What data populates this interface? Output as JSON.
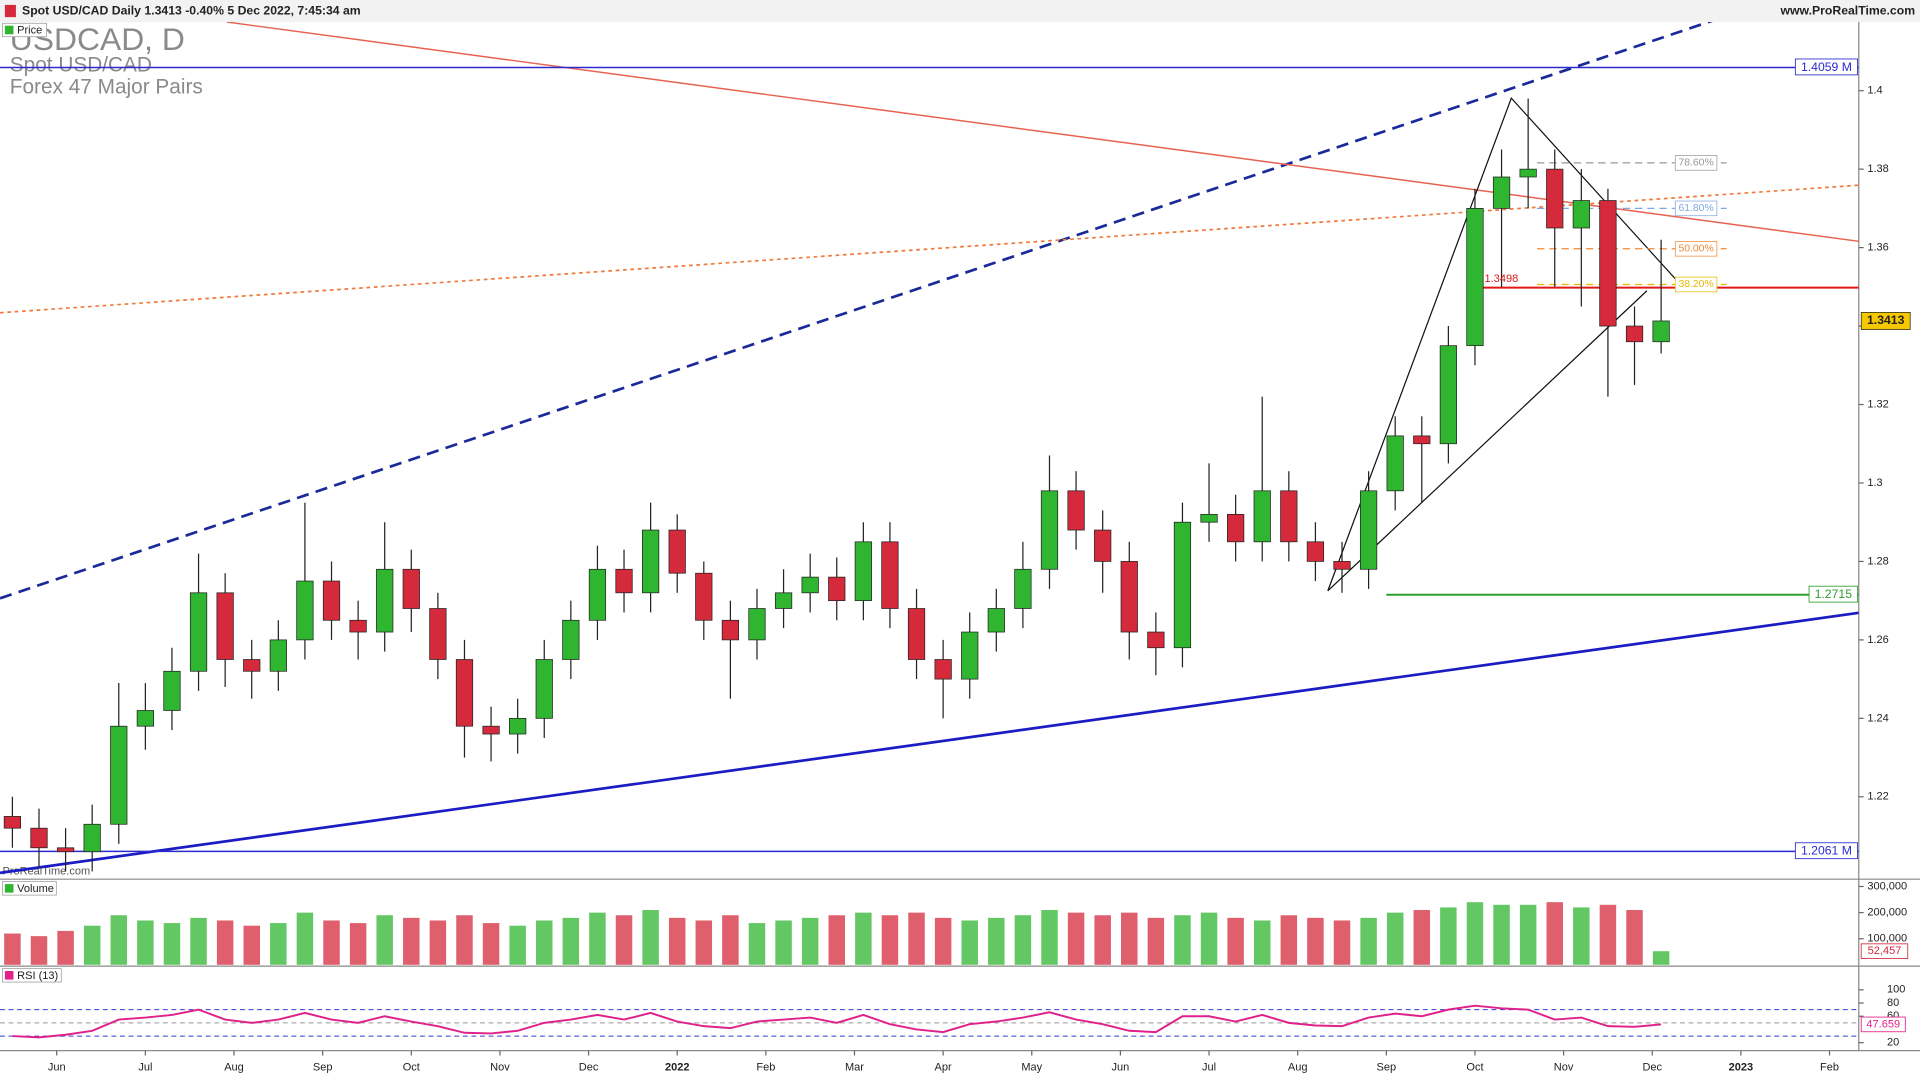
{
  "header": {
    "title": "Spot USD/CAD Daily 1.3413 -0.40% 5 Dec 2022, 7:45:34 am",
    "site": "www.ProRealTime.com"
  },
  "watermark": {
    "symbol": "USDCAD, D",
    "name": "Spot USD/CAD",
    "group": "Forex 47 Major Pairs",
    "brand": "ProRealTime.com"
  },
  "chart_data": {
    "type": "candlestick",
    "price_label": "Price",
    "up_color": "#2fb52f",
    "down_color": "#d42a3c",
    "xlim": [
      -0.64,
      20.33
    ],
    "xticks": [
      {
        "value": 0,
        "label": "Jun"
      },
      {
        "value": 1,
        "label": "Jul"
      },
      {
        "value": 2,
        "label": "Aug"
      },
      {
        "value": 3,
        "label": "Sep"
      },
      {
        "value": 4,
        "label": "Oct"
      },
      {
        "value": 5,
        "label": "Nov"
      },
      {
        "value": 6,
        "label": "Dec"
      },
      {
        "value": 7,
        "label": "2022"
      },
      {
        "value": 8,
        "label": "Feb"
      },
      {
        "value": 9,
        "label": "Mar"
      },
      {
        "value": 10,
        "label": "Apr"
      },
      {
        "value": 11,
        "label": "May"
      },
      {
        "value": 12,
        "label": "Jun"
      },
      {
        "value": 13,
        "label": "Jul"
      },
      {
        "value": 14,
        "label": "Aug"
      },
      {
        "value": 15,
        "label": "Sep"
      },
      {
        "value": 16,
        "label": "Oct"
      },
      {
        "value": 17,
        "label": "Nov"
      },
      {
        "value": 18,
        "label": "Dec"
      },
      {
        "value": 19,
        "label": "2023"
      },
      {
        "value": 20,
        "label": "Feb"
      }
    ],
    "ylim": [
      1.199,
      1.4175
    ],
    "yticks": [
      1.22,
      1.24,
      1.26,
      1.28,
      1.3,
      1.32,
      1.34,
      1.36,
      1.38,
      1.4
    ],
    "x": [
      -0.5,
      -0.2,
      0.1,
      0.4,
      0.7,
      1.0,
      1.3,
      1.6,
      1.9,
      2.2,
      2.5,
      2.8,
      3.1,
      3.4,
      3.7,
      4.0,
      4.3,
      4.6,
      4.9,
      5.2,
      5.5,
      5.8,
      6.1,
      6.4,
      6.7,
      7.0,
      7.3,
      7.6,
      7.9,
      8.2,
      8.5,
      8.8,
      9.1,
      9.4,
      9.7,
      10.0,
      10.3,
      10.6,
      10.9,
      11.2,
      11.5,
      11.8,
      12.1,
      12.4,
      12.7,
      13.0,
      13.3,
      13.6,
      13.9,
      14.2,
      14.5,
      14.8,
      15.1,
      15.4,
      15.7,
      16.0,
      16.3,
      16.6,
      16.9,
      17.2,
      17.5,
      17.8,
      18.1
    ],
    "open": [
      1.215,
      1.212,
      1.207,
      1.206,
      1.213,
      1.238,
      1.242,
      1.252,
      1.272,
      1.255,
      1.252,
      1.26,
      1.275,
      1.265,
      1.262,
      1.278,
      1.268,
      1.255,
      1.238,
      1.236,
      1.24,
      1.255,
      1.265,
      1.278,
      1.272,
      1.288,
      1.277,
      1.265,
      1.26,
      1.268,
      1.272,
      1.276,
      1.27,
      1.285,
      1.268,
      1.255,
      1.25,
      1.262,
      1.268,
      1.278,
      1.298,
      1.288,
      1.28,
      1.262,
      1.258,
      1.29,
      1.292,
      1.285,
      1.298,
      1.285,
      1.28,
      1.278,
      1.298,
      1.312,
      1.31,
      1.335,
      1.37,
      1.378,
      1.38,
      1.365,
      1.372,
      1.34,
      1.336
    ],
    "high": [
      1.22,
      1.217,
      1.212,
      1.218,
      1.249,
      1.249,
      1.258,
      1.282,
      1.277,
      1.26,
      1.265,
      1.295,
      1.28,
      1.27,
      1.29,
      1.283,
      1.272,
      1.26,
      1.243,
      1.245,
      1.26,
      1.27,
      1.284,
      1.283,
      1.295,
      1.292,
      1.28,
      1.27,
      1.273,
      1.278,
      1.282,
      1.281,
      1.29,
      1.29,
      1.273,
      1.26,
      1.267,
      1.273,
      1.285,
      1.307,
      1.303,
      1.293,
      1.285,
      1.267,
      1.295,
      1.305,
      1.297,
      1.322,
      1.303,
      1.29,
      1.285,
      1.303,
      1.317,
      1.317,
      1.34,
      1.375,
      1.385,
      1.398,
      1.385,
      1.38,
      1.375,
      1.345,
      1.362
    ],
    "low": [
      1.207,
      1.202,
      1.201,
      1.201,
      1.208,
      1.232,
      1.237,
      1.247,
      1.248,
      1.245,
      1.247,
      1.255,
      1.26,
      1.255,
      1.257,
      1.262,
      1.25,
      1.23,
      1.229,
      1.231,
      1.235,
      1.25,
      1.26,
      1.267,
      1.267,
      1.272,
      1.26,
      1.245,
      1.255,
      1.263,
      1.267,
      1.265,
      1.265,
      1.263,
      1.25,
      1.24,
      1.245,
      1.257,
      1.263,
      1.273,
      1.283,
      1.272,
      1.255,
      1.251,
      1.253,
      1.285,
      1.28,
      1.28,
      1.28,
      1.275,
      1.272,
      1.273,
      1.293,
      1.295,
      1.305,
      1.33,
      1.35,
      1.37,
      1.35,
      1.345,
      1.322,
      1.325,
      1.333
    ],
    "close": [
      1.212,
      1.207,
      1.206,
      1.213,
      1.238,
      1.242,
      1.252,
      1.272,
      1.255,
      1.252,
      1.26,
      1.275,
      1.265,
      1.262,
      1.278,
      1.268,
      1.255,
      1.238,
      1.236,
      1.24,
      1.255,
      1.265,
      1.278,
      1.272,
      1.288,
      1.277,
      1.265,
      1.26,
      1.268,
      1.272,
      1.276,
      1.27,
      1.285,
      1.268,
      1.255,
      1.25,
      1.262,
      1.268,
      1.278,
      1.298,
      1.288,
      1.28,
      1.262,
      1.258,
      1.29,
      1.292,
      1.285,
      1.298,
      1.285,
      1.28,
      1.278,
      1.298,
      1.312,
      1.31,
      1.335,
      1.37,
      1.378,
      1.38,
      1.365,
      1.372,
      1.34,
      1.336,
      1.3413
    ],
    "trendlines": [
      {
        "x": [
          -0.64,
          18.7
        ],
        "y": [
          1.2706,
          1.418
        ],
        "color": "#1a2a9a",
        "dash": "10,6",
        "width": 2.2
      },
      {
        "x": [
          -0.64,
          20.33
        ],
        "y": [
          1.2006,
          1.2669
        ],
        "color": "#1c1cc4",
        "dash": "none",
        "width": 2.2
      },
      {
        "x": [
          1.92,
          20.33
        ],
        "y": [
          1.4175,
          1.3616
        ],
        "color": "#e8604f",
        "dash": "none",
        "width": 1.2
      },
      {
        "x": [
          -0.64,
          20.33
        ],
        "y": [
          1.3434,
          1.3759
        ],
        "color": "#f07a3a",
        "dash": "3,3",
        "width": 1.4
      },
      {
        "x": [
          14.34,
          16.41,
          18.29
        ],
        "y": [
          1.2725,
          1.3981,
          1.3513
        ],
        "color": "#111111",
        "dash": "none",
        "width": 1
      },
      {
        "x": [
          14.34,
          17.94
        ],
        "y": [
          1.2725,
          1.349
        ],
        "color": "#111111",
        "dash": "none",
        "width": 1
      }
    ],
    "hlines": [
      {
        "value": 1.4059,
        "label": "1.4059 M",
        "color": "#2a2ad0",
        "label_side": "end"
      },
      {
        "value": 1.2061,
        "label": "1.2061 M",
        "color": "#2a2ad0",
        "label_side": "end"
      },
      {
        "value": 1.3498,
        "label": "1.3498",
        "color": "#e01818",
        "x_start": 16.08,
        "label_side": "start"
      },
      {
        "value": 1.2715,
        "label": "1.2715",
        "color": "#2f9e2f",
        "x_start": 15.0,
        "label_side": "end"
      }
    ],
    "fib_x": [
      16.7,
      18.84
    ],
    "fib_levels": [
      {
        "value": 1.3816,
        "label": "78.60%",
        "color": "#999999"
      },
      {
        "value": 1.37,
        "label": "61.80%",
        "color": "#7fa8e0"
      },
      {
        "value": 1.3597,
        "label": "50.00%",
        "color": "#f08a3a"
      },
      {
        "value": 1.3506,
        "label": "38.20%",
        "color": "#e6b800"
      }
    ],
    "volume": {
      "label": "Volume",
      "ylim": [
        0,
        328000
      ],
      "yticks": [
        {
          "value": 100000,
          "label": "100,000"
        },
        {
          "value": 200000,
          "label": "200,000"
        },
        {
          "value": 300000,
          "label": "300,000"
        }
      ],
      "values": [
        120000,
        110000,
        130000,
        150000,
        190000,
        170000,
        160000,
        180000,
        170000,
        150000,
        160000,
        200000,
        170000,
        160000,
        190000,
        180000,
        170000,
        190000,
        160000,
        150000,
        170000,
        180000,
        200000,
        190000,
        210000,
        180000,
        170000,
        190000,
        160000,
        170000,
        180000,
        190000,
        200000,
        190000,
        200000,
        180000,
        170000,
        180000,
        190000,
        210000,
        200000,
        190000,
        200000,
        180000,
        190000,
        200000,
        180000,
        170000,
        190000,
        180000,
        170000,
        180000,
        200000,
        210000,
        220000,
        240000,
        230000,
        230000,
        240000,
        220000,
        230000,
        210000,
        52457
      ],
      "last_value_label": "52,457"
    },
    "rsi": {
      "label": "RSI (13)",
      "color": "#e0218a",
      "ylim": [
        8,
        134
      ],
      "yticks": [
        20,
        60,
        80,
        100
      ],
      "levels": [
        70,
        50,
        30
      ],
      "values": [
        30,
        28,
        32,
        38,
        55,
        58,
        62,
        70,
        55,
        50,
        55,
        65,
        55,
        50,
        60,
        52,
        45,
        35,
        34,
        38,
        50,
        55,
        62,
        55,
        65,
        52,
        45,
        42,
        52,
        55,
        58,
        50,
        62,
        48,
        40,
        36,
        48,
        52,
        58,
        66,
        55,
        48,
        38,
        36,
        60,
        60,
        52,
        62,
        50,
        46,
        45,
        58,
        64,
        60,
        70,
        76,
        72,
        70,
        55,
        58,
        45,
        44,
        47.659
      ]
    }
  }
}
